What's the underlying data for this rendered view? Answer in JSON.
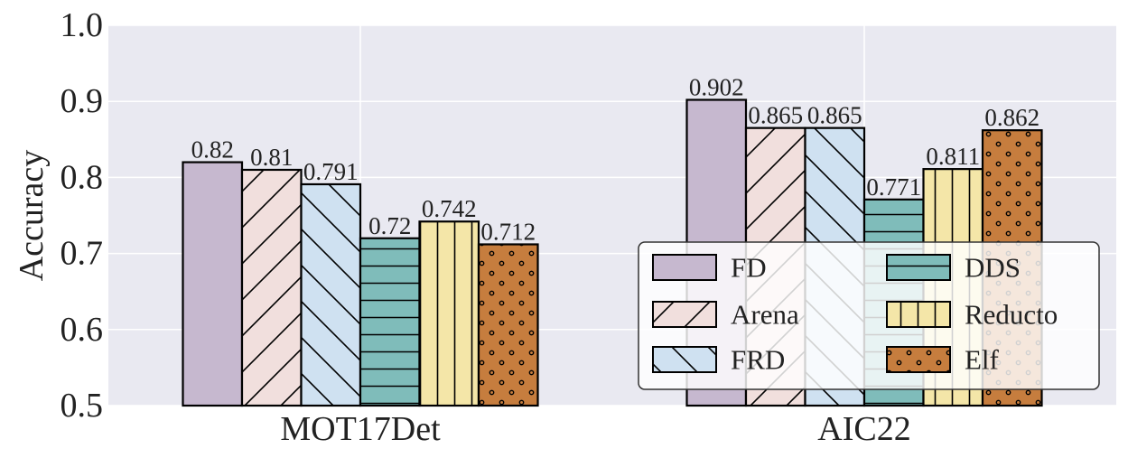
{
  "chart_data": {
    "type": "bar",
    "title": "",
    "xlabel": "",
    "ylabel": "Accuracy",
    "ylim": [
      0.5,
      1.0
    ],
    "yticks": [
      "0.5",
      "0.6",
      "0.7",
      "0.8",
      "0.9",
      "1.0"
    ],
    "categories": [
      "MOT17Det",
      "AIC22"
    ],
    "grid": true,
    "legend_position": "bottom-right",
    "series": [
      {
        "name": "FD",
        "values": [
          0.82,
          0.902
        ],
        "labels": [
          "0.82",
          "0.902"
        ],
        "color": "#c6b8cf",
        "pattern": "none"
      },
      {
        "name": "Arena",
        "values": [
          0.81,
          0.865
        ],
        "labels": [
          "0.81",
          "0.865"
        ],
        "color": "#f1dfdd",
        "pattern": "diagonal-forward"
      },
      {
        "name": "FRD",
        "values": [
          0.791,
          0.865
        ],
        "labels": [
          "0.791",
          "0.865"
        ],
        "color": "#cfe1f1",
        "pattern": "diagonal-back"
      },
      {
        "name": "DDS",
        "values": [
          0.72,
          0.771
        ],
        "labels": [
          "0.72",
          "0.771"
        ],
        "color": "#7fbcba",
        "pattern": "horizontal"
      },
      {
        "name": "Reducto",
        "values": [
          0.742,
          0.811
        ],
        "labels": [
          "0.742",
          "0.811"
        ],
        "color": "#f4e6a8",
        "pattern": "vertical"
      },
      {
        "name": "Elf",
        "values": [
          0.712,
          0.862
        ],
        "labels": [
          "0.712",
          "0.862"
        ],
        "color": "#c67d3e",
        "pattern": "dots"
      }
    ]
  }
}
